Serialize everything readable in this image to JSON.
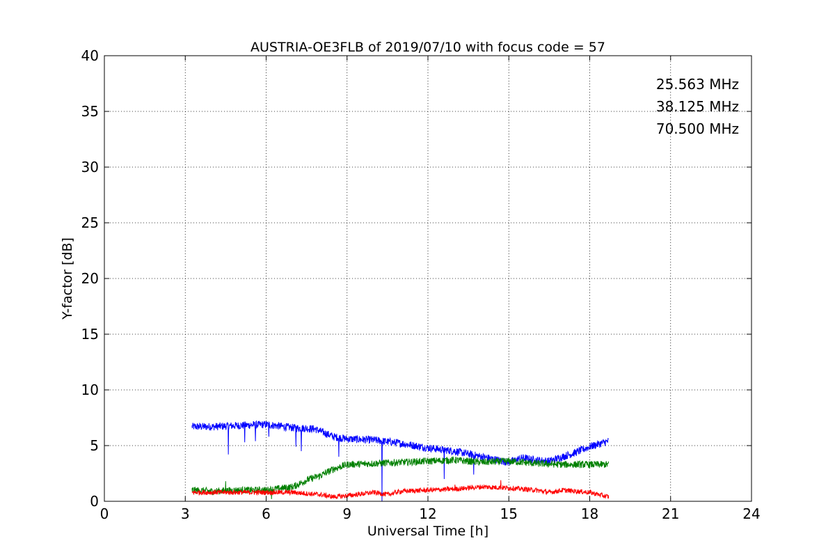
{
  "chart_data": {
    "type": "line",
    "title": "AUSTRIA-OE3FLB of 2019/07/10 with focus code = 57",
    "xlabel": "Universal Time [h]",
    "ylabel": "Y-factor [dB]",
    "xlim": [
      0,
      24
    ],
    "ylim": [
      0,
      40
    ],
    "xticks": [
      0,
      3,
      6,
      9,
      12,
      15,
      18,
      21,
      24
    ],
    "yticks": [
      0,
      5,
      10,
      15,
      20,
      25,
      30,
      35,
      40
    ],
    "grid": true,
    "legend_position": "top-right",
    "series": [
      {
        "name": "25.563 MHz",
        "color": "#0000ff",
        "x": [
          3.25,
          4.0,
          5.0,
          6.0,
          7.0,
          7.8,
          8.5,
          9.0,
          10.0,
          11.0,
          12.0,
          13.0,
          14.0,
          15.0,
          15.5,
          16.0,
          16.5,
          17.0,
          17.5,
          18.0,
          18.7
        ],
        "y": [
          6.7,
          6.7,
          6.8,
          6.9,
          6.6,
          6.5,
          5.8,
          5.6,
          5.5,
          5.2,
          4.8,
          4.5,
          4.0,
          3.5,
          3.9,
          3.7,
          3.6,
          4.0,
          4.4,
          4.9,
          5.4
        ],
        "spikes": [
          [
            4.6,
            4.2
          ],
          [
            5.2,
            5.3
          ],
          [
            5.6,
            5.4
          ],
          [
            6.1,
            5.8
          ],
          [
            7.1,
            4.9
          ],
          [
            7.3,
            4.5
          ],
          [
            8.7,
            4.0
          ],
          [
            10.3,
            0.0
          ],
          [
            12.6,
            2.0
          ],
          [
            13.7,
            2.4
          ]
        ]
      },
      {
        "name": "38.125 MHz",
        "color": "#008000",
        "x": [
          3.25,
          4.0,
          5.0,
          6.0,
          7.0,
          7.5,
          8.0,
          8.5,
          9.0,
          10.0,
          11.0,
          12.0,
          13.0,
          14.0,
          15.0,
          16.0,
          17.0,
          18.0,
          18.7
        ],
        "y": [
          1.0,
          0.9,
          1.0,
          1.0,
          1.3,
          1.9,
          2.3,
          2.9,
          3.3,
          3.4,
          3.5,
          3.6,
          3.7,
          3.5,
          3.6,
          3.4,
          3.3,
          3.3,
          3.3
        ],
        "spikes": [
          [
            4.5,
            1.8
          ],
          [
            6.2,
            0.2
          ]
        ]
      },
      {
        "name": "70.500 MHz",
        "color": "#ff0000",
        "x": [
          3.25,
          4.0,
          5.0,
          6.0,
          7.0,
          7.5,
          8.0,
          8.5,
          9.0,
          10.0,
          10.5,
          11.0,
          12.0,
          13.0,
          14.0,
          15.0,
          16.0,
          16.5,
          17.0,
          18.0,
          18.7
        ],
        "y": [
          0.8,
          0.8,
          0.8,
          0.8,
          0.8,
          0.7,
          0.6,
          0.4,
          0.5,
          0.8,
          0.6,
          0.9,
          1.0,
          1.1,
          1.3,
          1.2,
          1.0,
          0.8,
          1.0,
          0.8,
          0.4
        ],
        "spikes": [
          [
            14.7,
            1.9
          ],
          [
            13.0,
            1.5
          ]
        ]
      }
    ]
  }
}
